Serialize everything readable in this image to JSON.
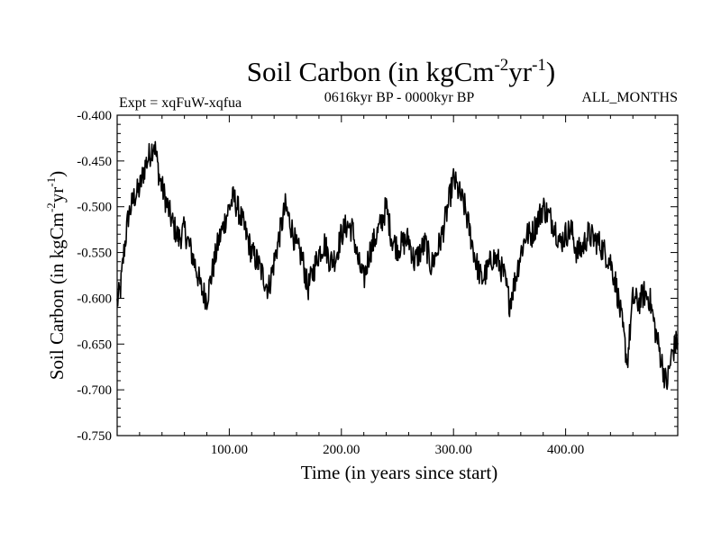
{
  "chart_data": {
    "type": "line",
    "title": {
      "main": "Soil Carbon (in kgCm",
      "sup1": "-2",
      "mid": "yr",
      "sup2": "-1",
      "close": ")"
    },
    "experiment": "Expt = xqFuW-xqfua",
    "period": "0616kyr BP - 0000kyr BP",
    "season": "ALL_MONTHS",
    "xlabel": "Time (in years since start)",
    "ylabel": {
      "main": "Soil Carbon (in kgCm",
      "sup1": "-2",
      "mid": "yr",
      "sup2": "-1",
      "close": ")"
    },
    "xlim": [
      0,
      500
    ],
    "ylim": [
      -0.75,
      -0.4
    ],
    "xticks": [
      100,
      200,
      300,
      400
    ],
    "xtick_labels": [
      "100.00",
      "200.00",
      "300.00",
      "400.00"
    ],
    "yticks": [
      -0.75,
      -0.7,
      -0.65,
      -0.6,
      -0.55,
      -0.5,
      -0.45,
      -0.4
    ],
    "ytick_labels": [
      "-0.750",
      "-0.700",
      "-0.650",
      "-0.600",
      "-0.550",
      "-0.500",
      "-0.450",
      "-0.400"
    ],
    "series": [
      {
        "name": "Soil Carbon",
        "color": "#000000",
        "x": [
          0,
          3,
          6,
          10,
          15,
          20,
          25,
          30,
          33,
          38,
          45,
          50,
          55,
          60,
          65,
          70,
          75,
          80,
          85,
          90,
          95,
          100,
          104,
          110,
          115,
          120,
          125,
          130,
          135,
          140,
          145,
          150,
          155,
          160,
          165,
          170,
          175,
          180,
          185,
          190,
          195,
          200,
          205,
          210,
          215,
          220,
          225,
          230,
          235,
          240,
          245,
          250,
          255,
          260,
          265,
          270,
          275,
          280,
          285,
          290,
          295,
          300,
          305,
          310,
          315,
          320,
          325,
          330,
          335,
          340,
          345,
          350,
          355,
          360,
          365,
          370,
          375,
          380,
          385,
          390,
          395,
          400,
          405,
          410,
          415,
          420,
          425,
          430,
          435,
          440,
          445,
          450,
          455,
          460,
          465,
          470,
          475,
          480,
          485,
          490,
          495,
          500
        ],
        "y": [
          -0.605,
          -0.59,
          -0.55,
          -0.51,
          -0.49,
          -0.48,
          -0.455,
          -0.44,
          -0.43,
          -0.47,
          -0.5,
          -0.52,
          -0.535,
          -0.525,
          -0.545,
          -0.565,
          -0.59,
          -0.6,
          -0.57,
          -0.54,
          -0.52,
          -0.5,
          -0.49,
          -0.51,
          -0.53,
          -0.55,
          -0.56,
          -0.575,
          -0.59,
          -0.56,
          -0.53,
          -0.5,
          -0.52,
          -0.545,
          -0.555,
          -0.59,
          -0.57,
          -0.55,
          -0.54,
          -0.56,
          -0.555,
          -0.53,
          -0.52,
          -0.525,
          -0.56,
          -0.58,
          -0.55,
          -0.535,
          -0.52,
          -0.5,
          -0.535,
          -0.545,
          -0.54,
          -0.535,
          -0.56,
          -0.55,
          -0.54,
          -0.565,
          -0.55,
          -0.53,
          -0.5,
          -0.47,
          -0.485,
          -0.5,
          -0.53,
          -0.56,
          -0.58,
          -0.57,
          -0.555,
          -0.56,
          -0.575,
          -0.605,
          -0.58,
          -0.55,
          -0.53,
          -0.53,
          -0.515,
          -0.5,
          -0.51,
          -0.52,
          -0.54,
          -0.53,
          -0.525,
          -0.55,
          -0.545,
          -0.53,
          -0.535,
          -0.54,
          -0.55,
          -0.56,
          -0.585,
          -0.625,
          -0.67,
          -0.6,
          -0.605,
          -0.595,
          -0.6,
          -0.635,
          -0.665,
          -0.695,
          -0.66,
          -0.645
        ]
      }
    ]
  }
}
